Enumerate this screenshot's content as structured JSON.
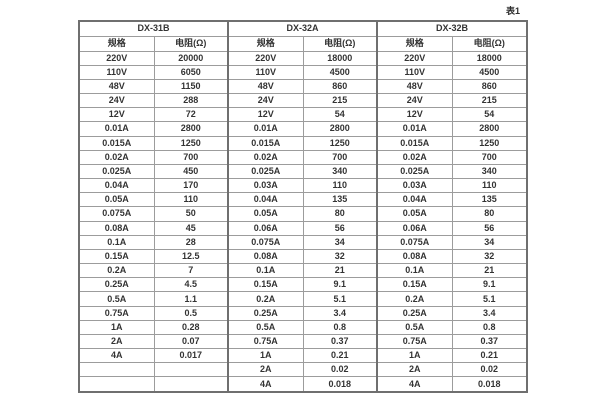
{
  "chart_data": {
    "type": "table",
    "caption": "表1",
    "groups": [
      {
        "name": "DX-31B",
        "spec_header": "规格",
        "res_header": "电阻(Ω)"
      },
      {
        "name": "DX-32A",
        "spec_header": "规格",
        "res_header": "电阻(Ω)"
      },
      {
        "name": "DX-32B",
        "spec_header": "规格",
        "res_header": "电阻(Ω)"
      }
    ],
    "rows": [
      [
        "220V",
        "20000",
        "220V",
        "18000",
        "220V",
        "18000"
      ],
      [
        "110V",
        "6050",
        "110V",
        "4500",
        "110V",
        "4500"
      ],
      [
        "48V",
        "1150",
        "48V",
        "860",
        "48V",
        "860"
      ],
      [
        "24V",
        "288",
        "24V",
        "215",
        "24V",
        "215"
      ],
      [
        "12V",
        "72",
        "12V",
        "54",
        "12V",
        "54"
      ],
      [
        "0.01A",
        "2800",
        "0.01A",
        "2800",
        "0.01A",
        "2800"
      ],
      [
        "0.015A",
        "1250",
        "0.015A",
        "1250",
        "0.015A",
        "1250"
      ],
      [
        "0.02A",
        "700",
        "0.02A",
        "700",
        "0.02A",
        "700"
      ],
      [
        "0.025A",
        "450",
        "0.025A",
        "340",
        "0.025A",
        "340"
      ],
      [
        "0.04A",
        "170",
        "0.03A",
        "110",
        "0.03A",
        "110"
      ],
      [
        "0.05A",
        "110",
        "0.04A",
        "135",
        "0.04A",
        "135"
      ],
      [
        "0.075A",
        "50",
        "0.05A",
        "80",
        "0.05A",
        "80"
      ],
      [
        "0.08A",
        "45",
        "0.06A",
        "56",
        "0.06A",
        "56"
      ],
      [
        "0.1A",
        "28",
        "0.075A",
        "34",
        "0.075A",
        "34"
      ],
      [
        "0.15A",
        "12.5",
        "0.08A",
        "32",
        "0.08A",
        "32"
      ],
      [
        "0.2A",
        "7",
        "0.1A",
        "21",
        "0.1A",
        "21"
      ],
      [
        "0.25A",
        "4.5",
        "0.15A",
        "9.1",
        "0.15A",
        "9.1"
      ],
      [
        "0.5A",
        "1.1",
        "0.2A",
        "5.1",
        "0.2A",
        "5.1"
      ],
      [
        "0.75A",
        "0.5",
        "0.25A",
        "3.4",
        "0.25A",
        "3.4"
      ],
      [
        "1A",
        "0.28",
        "0.5A",
        "0.8",
        "0.5A",
        "0.8"
      ],
      [
        "2A",
        "0.07",
        "0.75A",
        "0.37",
        "0.75A",
        "0.37"
      ],
      [
        "4A",
        "0.017",
        "1A",
        "0.21",
        "1A",
        "0.21"
      ],
      [
        "",
        "",
        "2A",
        "0.02",
        "2A",
        "0.02"
      ],
      [
        "",
        "",
        "4A",
        "0.018",
        "4A",
        "0.018"
      ]
    ]
  },
  "colors": {
    "background": "#ffffff",
    "border_outer": "#6f6f6f",
    "border_inner": "#9c9c9c",
    "text": "#333333"
  }
}
